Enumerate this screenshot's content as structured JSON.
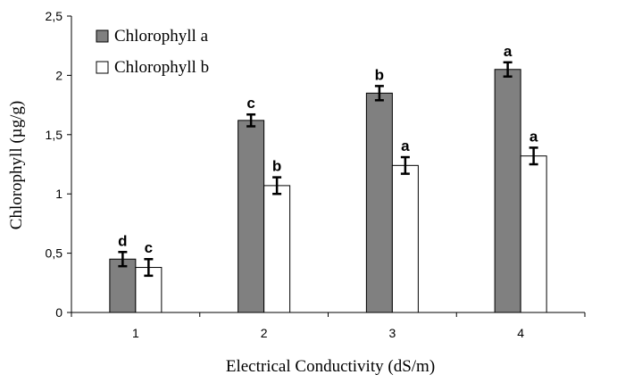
{
  "chart_data": {
    "type": "bar",
    "title": "",
    "xlabel": "Electrical Conductivity (dS/m)",
    "ylabel": "Chlorophyll (µg/g)",
    "ylim": [
      0,
      2.5
    ],
    "yticks": [
      "0",
      "0,5",
      "1",
      "1,5",
      "2",
      "2,5"
    ],
    "ytick_values": [
      0,
      0.5,
      1,
      1.5,
      2,
      2.5
    ],
    "categories": [
      "1",
      "2",
      "3",
      "4"
    ],
    "grid": false,
    "legend_position": "top-left",
    "series": [
      {
        "name": "Chlorophyll a",
        "color": "#808080",
        "values": [
          0.45,
          1.62,
          1.85,
          2.05
        ],
        "errors": [
          0.06,
          0.05,
          0.06,
          0.06
        ],
        "letters": [
          "d",
          "c",
          "b",
          "a"
        ]
      },
      {
        "name": "Chlorophyll b",
        "color": "#ffffff",
        "values": [
          0.38,
          1.07,
          1.24,
          1.32
        ],
        "errors": [
          0.07,
          0.07,
          0.07,
          0.07
        ],
        "letters": [
          "c",
          "b",
          "a",
          "a"
        ]
      }
    ]
  }
}
